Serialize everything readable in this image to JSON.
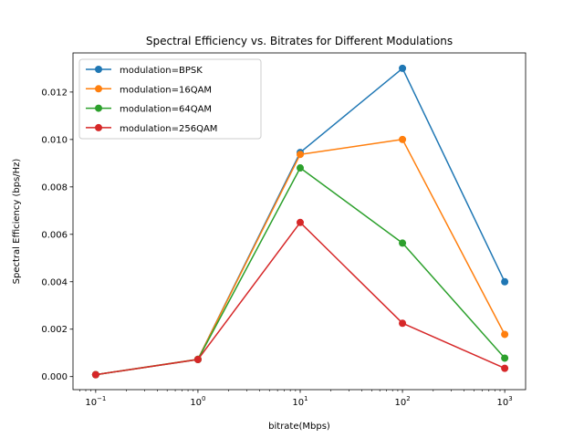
{
  "chart_data": {
    "type": "line",
    "title": "Spectral Efficiency vs. Bitrates for Different Modulations",
    "xlabel": "bitrate(Mbps)",
    "ylabel": "Spectral Efficiency (bps/Hz)",
    "xscale": "log",
    "x": [
      0.1,
      1,
      10,
      100,
      1000
    ],
    "x_tick_labels": [
      {
        "base": "10",
        "exp": "−1"
      },
      {
        "base": "10",
        "exp": "0"
      },
      {
        "base": "10",
        "exp": "1"
      },
      {
        "base": "10",
        "exp": "2"
      },
      {
        "base": "10",
        "exp": "3"
      }
    ],
    "xlim": [
      0.06,
      1600
    ],
    "ylim": [
      -0.00055,
      0.01365
    ],
    "y_ticks": [
      0.0,
      0.002,
      0.004,
      0.006,
      0.008,
      0.01,
      0.012
    ],
    "y_tick_labels": [
      "0.000",
      "0.002",
      "0.004",
      "0.006",
      "0.008",
      "0.010",
      "0.012"
    ],
    "grid": false,
    "legend_position": "top-left",
    "series": [
      {
        "name": "modulation=BPSK",
        "color": "#1f77b4",
        "values": [
          8e-05,
          0.00073,
          0.00945,
          0.013,
          0.004
        ]
      },
      {
        "name": "modulation=16QAM",
        "color": "#ff7f0e",
        "values": [
          8e-05,
          0.00073,
          0.00937,
          0.01,
          0.00178
        ]
      },
      {
        "name": "modulation=64QAM",
        "color": "#2ca02c",
        "values": [
          8e-05,
          0.00072,
          0.0088,
          0.00563,
          0.00078
        ]
      },
      {
        "name": "modulation=256QAM",
        "color": "#d62728",
        "values": [
          8e-05,
          0.00072,
          0.0065,
          0.00225,
          0.00035
        ]
      }
    ]
  }
}
